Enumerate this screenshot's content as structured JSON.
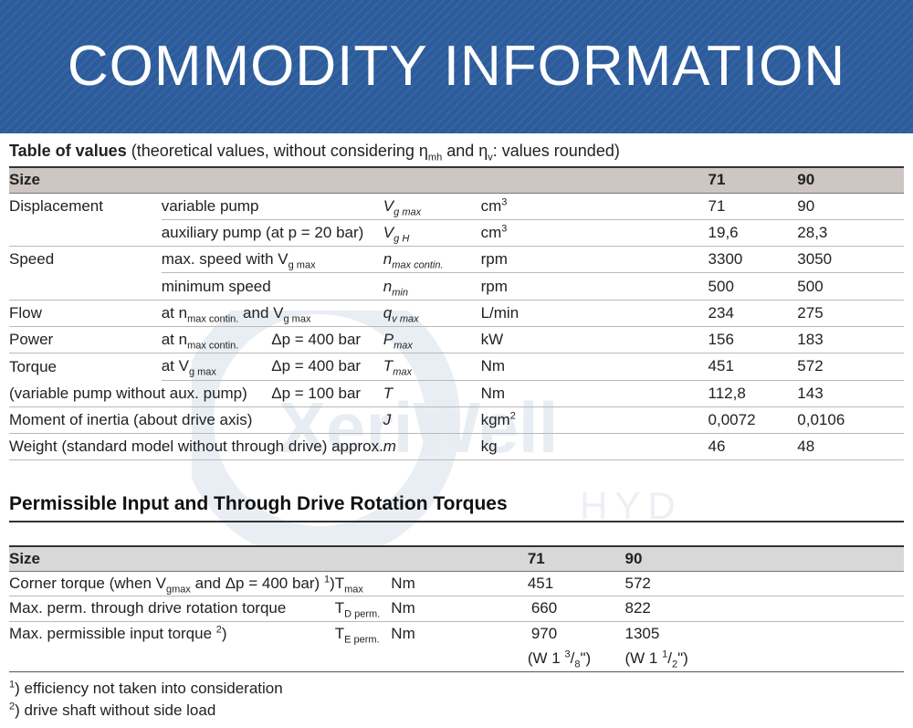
{
  "banner": {
    "title": "COMMODITY INFORMATION"
  },
  "watermark": {
    "brand": "XeriWell",
    "sub": "HYD"
  },
  "table1": {
    "caption_bold": "Table of values",
    "caption_pre": " (theoretical values, without considering ",
    "eta": "η",
    "mh": "mh",
    "and": " and ",
    "v": "v",
    "caption_post": ": values rounded)",
    "header": {
      "label": "Size",
      "c1": "71",
      "c2": "90"
    },
    "rows": [
      {
        "cat": "Displacement",
        "desc": "variable pump",
        "sym": "V",
        "sym_sub": "g max",
        "unit": "cm",
        "unit_sup": "3",
        "v1": "71",
        "v2": "90"
      },
      {
        "cat": "",
        "desc": "auxiliary pump (at p = 20 bar)",
        "sym": "V",
        "sym_sub": "g H",
        "unit": "cm",
        "unit_sup": "3",
        "v1": "19,6",
        "v2": "28,3"
      },
      {
        "cat": "Speed",
        "desc": "max. speed with V",
        "desc_sub": "g max",
        "sym": "n",
        "sym_sub": "max contin.",
        "unit": "rpm",
        "v1": "3300",
        "v2": "3050"
      },
      {
        "cat": "",
        "desc": "minimum speed",
        "sym": "n",
        "sym_sub": "min",
        "unit": "rpm",
        "v1": "500",
        "v2": "500"
      },
      {
        "cat": "Flow",
        "desc": "at n",
        "desc_sub": "max contin.",
        "desc_mid": " and V",
        "desc_sub2": "g max",
        "sym": "q",
        "sym_sub": "v max",
        "unit": "L/min",
        "v1": "234",
        "v2": "275"
      },
      {
        "cat": "Power",
        "desc": "at n",
        "desc_sub": "max contin.",
        "dp": "Δp = 400 bar",
        "sym": "P",
        "sym_sub": "max",
        "unit": "kW",
        "v1": "156",
        "v2": "183"
      },
      {
        "cat": "Torque",
        "desc": "at V",
        "desc_sub": "g max",
        "dp": "Δp = 400 bar",
        "sym": "T",
        "sym_sub": "max",
        "unit": "Nm",
        "v1": "451",
        "v2": "572"
      },
      {
        "cat": "(variable pump without aux. pump)",
        "dp": "Δp = 100 bar",
        "sym": "T",
        "unit": "Nm",
        "v1": "112,8",
        "v2": "143"
      },
      {
        "cat": "Moment of inertia (about drive axis)",
        "sym": "J",
        "unit": "kgm",
        "unit_sup": "2",
        "v1": "0,0072",
        "v2": "0,0106"
      },
      {
        "cat": "Weight (standard model without through drive) approx.",
        "sym": "m",
        "unit": "kg",
        "v1": "46",
        "v2": "48"
      }
    ]
  },
  "table2": {
    "heading": "Permissible Input and Through Drive Rotation Torques",
    "header": {
      "label": "Size",
      "c1": "71",
      "c2": "90"
    },
    "rows": [
      {
        "desc_a": "Corner torque (when V",
        "desc_sub": "gmax",
        "desc_b": " and Δp = 400 bar) ",
        "desc_sup": "1",
        "desc_c": ")",
        "sym": "T",
        "sym_sub": "max",
        "unit": "Nm",
        "v1": "451",
        "v2": "572"
      },
      {
        "desc_a": "Max. perm. through drive rotation torque",
        "sym": "T",
        "sym_sub": "D perm.",
        "unit": "Nm",
        "v1": "660",
        "v2": "822"
      },
      {
        "desc_a": "Max. permissible input torque  ",
        "desc_sup": "2",
        "desc_c": ")",
        "sym": "T",
        "sym_sub": "E perm.",
        "unit": "Nm",
        "v1": "970",
        "v2": "1305"
      }
    ],
    "shaft": {
      "a_pre": "(W 1 ",
      "a_num": "3",
      "a_den": "8",
      "a_post": "\")",
      "b_pre": "(W 1 ",
      "b_num": "1",
      "b_den": "2",
      "b_post": "\")",
      "slash": "/"
    }
  },
  "footnotes": [
    {
      "mark": "1",
      "text": ") efficiency not taken into consideration"
    },
    {
      "mark": "2",
      "text": ") drive shaft without side load"
    }
  ]
}
